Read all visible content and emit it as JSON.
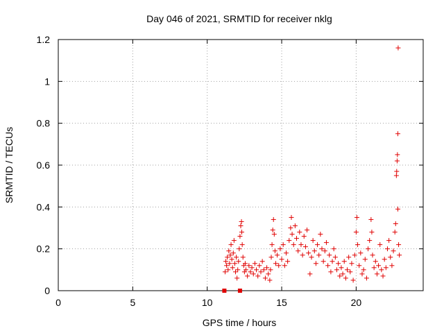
{
  "chart_data": {
    "type": "scatter",
    "title": "Day 046 of 2021, SRMTID for receiver nklg",
    "xlabel": "GPS time / hours",
    "ylabel": "SRMTID / TECUs",
    "xlim": [
      0,
      24.5
    ],
    "ylim": [
      0,
      1.2
    ],
    "xticks": [
      0,
      5,
      10,
      15,
      20
    ],
    "xtick_labels": [
      "0",
      "5",
      "10",
      "15",
      "20"
    ],
    "yticks": [
      0,
      0.2,
      0.4,
      0.6,
      0.8,
      1.0,
      1.2
    ],
    "ytick_labels": [
      "0",
      "0.2",
      "0.4",
      "0.6",
      "0.8",
      "1",
      "1.2"
    ],
    "grid": true,
    "marker": "plus",
    "color": "#e00000",
    "series": [
      {
        "name": "SRMTID",
        "points": [
          [
            11.2,
            0.09
          ],
          [
            11.25,
            0.14
          ],
          [
            11.3,
            0.12
          ],
          [
            11.35,
            0.16
          ],
          [
            11.4,
            0.1
          ],
          [
            11.45,
            0.19
          ],
          [
            11.5,
            0.13
          ],
          [
            11.55,
            0.17
          ],
          [
            11.6,
            0.22
          ],
          [
            11.65,
            0.15
          ],
          [
            11.7,
            0.11
          ],
          [
            11.75,
            0.18
          ],
          [
            11.8,
            0.24
          ],
          [
            11.85,
            0.13
          ],
          [
            11.9,
            0.09
          ],
          [
            11.95,
            0.16
          ],
          [
            12.0,
            0.06
          ],
          [
            12.05,
            0.1
          ],
          [
            12.1,
            0.14
          ],
          [
            12.15,
            0.2
          ],
          [
            12.2,
            0.26
          ],
          [
            12.25,
            0.31
          ],
          [
            12.3,
            0.33
          ],
          [
            12.32,
            0.28
          ],
          [
            12.35,
            0.22
          ],
          [
            12.4,
            0.16
          ],
          [
            12.45,
            0.12
          ],
          [
            12.5,
            0.09
          ],
          [
            12.55,
            0.13
          ],
          [
            12.6,
            0.1
          ],
          [
            12.7,
            0.07
          ],
          [
            12.8,
            0.12
          ],
          [
            12.9,
            0.09
          ],
          [
            13.0,
            0.11
          ],
          [
            13.1,
            0.08
          ],
          [
            13.2,
            0.13
          ],
          [
            13.3,
            0.1
          ],
          [
            13.4,
            0.07
          ],
          [
            13.5,
            0.12
          ],
          [
            13.6,
            0.09
          ],
          [
            13.7,
            0.14
          ],
          [
            13.8,
            0.1
          ],
          [
            13.9,
            0.06
          ],
          [
            14.0,
            0.11
          ],
          [
            14.1,
            0.08
          ],
          [
            14.2,
            0.05
          ],
          [
            14.25,
            0.1
          ],
          [
            14.3,
            0.16
          ],
          [
            14.35,
            0.22
          ],
          [
            14.4,
            0.29
          ],
          [
            14.45,
            0.34
          ],
          [
            14.5,
            0.27
          ],
          [
            14.55,
            0.19
          ],
          [
            14.6,
            0.13
          ],
          [
            14.7,
            0.17
          ],
          [
            14.8,
            0.12
          ],
          [
            14.9,
            0.2
          ],
          [
            15.0,
            0.15
          ],
          [
            15.1,
            0.22
          ],
          [
            15.2,
            0.12
          ],
          [
            15.3,
            0.18
          ],
          [
            15.4,
            0.14
          ],
          [
            15.5,
            0.24
          ],
          [
            15.6,
            0.3
          ],
          [
            15.65,
            0.35
          ],
          [
            15.7,
            0.27
          ],
          [
            15.8,
            0.22
          ],
          [
            15.9,
            0.31
          ],
          [
            16.0,
            0.25
          ],
          [
            16.1,
            0.19
          ],
          [
            16.2,
            0.28
          ],
          [
            16.3,
            0.22
          ],
          [
            16.4,
            0.17
          ],
          [
            16.5,
            0.26
          ],
          [
            16.6,
            0.21
          ],
          [
            16.7,
            0.29
          ],
          [
            16.8,
            0.18
          ],
          [
            16.9,
            0.08
          ],
          [
            17.0,
            0.16
          ],
          [
            17.1,
            0.24
          ],
          [
            17.2,
            0.19
          ],
          [
            17.3,
            0.13
          ],
          [
            17.4,
            0.22
          ],
          [
            17.5,
            0.17
          ],
          [
            17.6,
            0.27
          ],
          [
            17.7,
            0.2
          ],
          [
            17.8,
            0.14
          ],
          [
            17.9,
            0.19
          ],
          [
            18.0,
            0.23
          ],
          [
            18.1,
            0.12
          ],
          [
            18.2,
            0.17
          ],
          [
            18.3,
            0.09
          ],
          [
            18.4,
            0.14
          ],
          [
            18.5,
            0.2
          ],
          [
            18.6,
            0.16
          ],
          [
            18.7,
            0.1
          ],
          [
            18.8,
            0.13
          ],
          [
            18.9,
            0.07
          ],
          [
            19.0,
            0.11
          ],
          [
            19.1,
            0.08
          ],
          [
            19.2,
            0.14
          ],
          [
            19.3,
            0.06
          ],
          [
            19.4,
            0.1
          ],
          [
            19.5,
            0.16
          ],
          [
            19.6,
            0.09
          ],
          [
            19.7,
            0.13
          ],
          [
            19.8,
            0.05
          ],
          [
            19.9,
            0.17
          ],
          [
            20.0,
            0.28
          ],
          [
            20.05,
            0.35
          ],
          [
            20.1,
            0.22
          ],
          [
            20.2,
            0.12
          ],
          [
            20.3,
            0.18
          ],
          [
            20.4,
            0.08
          ],
          [
            20.5,
            0.1
          ],
          [
            20.6,
            0.15
          ],
          [
            20.7,
            0.06
          ],
          [
            20.8,
            0.2
          ],
          [
            20.9,
            0.24
          ],
          [
            21.0,
            0.34
          ],
          [
            21.05,
            0.28
          ],
          [
            21.1,
            0.17
          ],
          [
            21.2,
            0.11
          ],
          [
            21.3,
            0.14
          ],
          [
            21.4,
            0.08
          ],
          [
            21.5,
            0.12
          ],
          [
            21.6,
            0.22
          ],
          [
            21.7,
            0.1
          ],
          [
            21.8,
            0.07
          ],
          [
            21.9,
            0.15
          ],
          [
            22.0,
            0.11
          ],
          [
            22.1,
            0.2
          ],
          [
            22.2,
            0.24
          ],
          [
            22.3,
            0.16
          ],
          [
            22.4,
            0.12
          ],
          [
            22.5,
            0.19
          ],
          [
            22.6,
            0.28
          ],
          [
            22.65,
            0.32
          ],
          [
            22.7,
            0.55
          ],
          [
            22.72,
            0.57
          ],
          [
            22.75,
            0.62
          ],
          [
            22.77,
            0.65
          ],
          [
            22.8,
            0.75
          ],
          [
            22.8,
            0.39
          ],
          [
            22.82,
            1.16
          ],
          [
            22.85,
            0.22
          ],
          [
            22.9,
            0.17
          ]
        ]
      }
    ],
    "square_points": [
      [
        11.15,
        0.0
      ],
      [
        12.2,
        0.0
      ]
    ]
  }
}
